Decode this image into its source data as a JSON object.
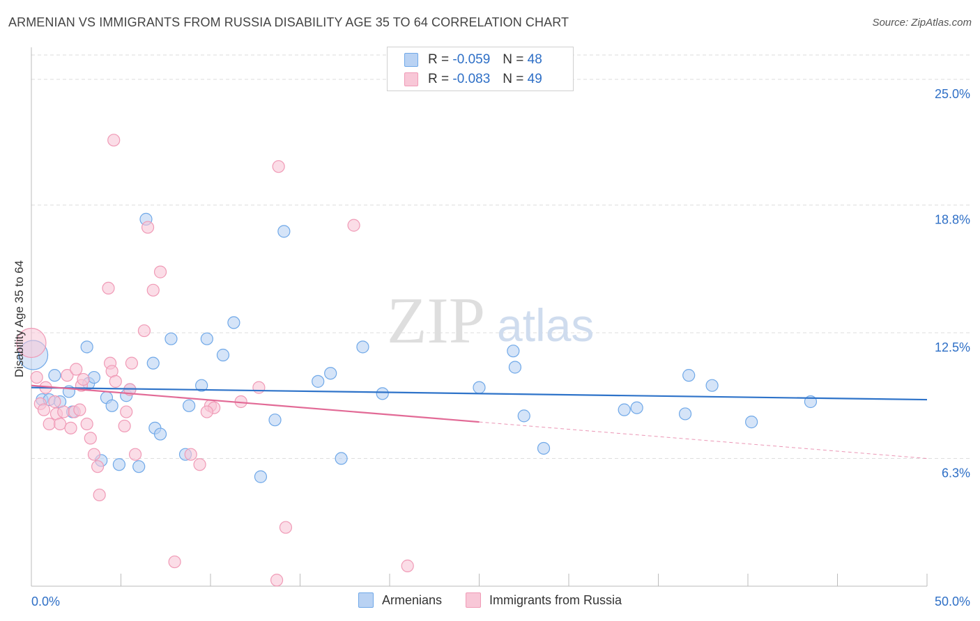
{
  "title": "ARMENIAN VS IMMIGRANTS FROM RUSSIA DISABILITY AGE 35 TO 64 CORRELATION CHART",
  "source": "Source: ZipAtlas.com",
  "watermark": {
    "zip": "ZIP",
    "atlas": "atlas"
  },
  "legend": {
    "r_label": "R =",
    "n_label": "N =",
    "rows": [
      {
        "r": "-0.059",
        "n": "48"
      },
      {
        "r": "-0.083",
        "n": "49"
      }
    ]
  },
  "chart_data": {
    "type": "scatter",
    "title": "ARMENIAN VS IMMIGRANTS FROM RUSSIA DISABILITY AGE 35 TO 64 CORRELATION CHART",
    "xlabel": "",
    "ylabel": "Disability Age 35 to 64",
    "xlim": [
      0,
      50
    ],
    "ylim": [
      0,
      26.2
    ],
    "x_tick_labels": [
      "0.0%",
      "50.0%"
    ],
    "y_ticks": [
      6.3,
      12.5,
      18.8,
      25.0
    ],
    "y_tick_labels": [
      "6.3%",
      "12.5%",
      "18.8%",
      "25.0%"
    ],
    "grid": true,
    "legend_position": "bottom-center",
    "series": [
      {
        "name": "Armenians",
        "color": "#6fa8e8",
        "fill": "#b9d2f3",
        "line_color": "#2e73c9",
        "trend": {
          "x0": 0,
          "y0": 9.8,
          "x1": 50,
          "y1": 9.2,
          "dashed_from": null
        },
        "points": [
          [
            0.1,
            11.4,
            "big"
          ],
          [
            0.6,
            9.2
          ],
          [
            1.3,
            10.4
          ],
          [
            1.0,
            9.2
          ],
          [
            2.1,
            9.6
          ],
          [
            1.6,
            9.1
          ],
          [
            2.3,
            8.6
          ],
          [
            3.2,
            10.0
          ],
          [
            3.5,
            10.3
          ],
          [
            3.1,
            11.8
          ],
          [
            4.2,
            9.3
          ],
          [
            4.5,
            8.9
          ],
          [
            3.9,
            6.2
          ],
          [
            4.9,
            6.0
          ],
          [
            5.3,
            9.4
          ],
          [
            5.5,
            9.7
          ],
          [
            6.0,
            5.9
          ],
          [
            6.4,
            18.1
          ],
          [
            6.8,
            11.0
          ],
          [
            6.9,
            7.8
          ],
          [
            7.2,
            7.5
          ],
          [
            7.8,
            12.2
          ],
          [
            8.6,
            6.5
          ],
          [
            8.8,
            8.9
          ],
          [
            9.5,
            9.9
          ],
          [
            9.8,
            12.2
          ],
          [
            10.7,
            11.4
          ],
          [
            11.3,
            13.0
          ],
          [
            12.8,
            5.4
          ],
          [
            13.6,
            8.2
          ],
          [
            14.1,
            17.5
          ],
          [
            16.0,
            10.1
          ],
          [
            16.7,
            10.5
          ],
          [
            17.3,
            6.3
          ],
          [
            18.5,
            11.8
          ],
          [
            19.6,
            9.5
          ],
          [
            25.0,
            9.8
          ],
          [
            26.9,
            11.6
          ],
          [
            27.0,
            10.8
          ],
          [
            27.5,
            8.4
          ],
          [
            28.6,
            6.8
          ],
          [
            33.1,
            8.7
          ],
          [
            33.8,
            8.8
          ],
          [
            36.5,
            8.5
          ],
          [
            36.7,
            10.4
          ],
          [
            38.0,
            9.9
          ],
          [
            40.2,
            8.1
          ],
          [
            43.5,
            9.1
          ]
        ]
      },
      {
        "name": "Immigrants from Russia",
        "color": "#f09ab6",
        "fill": "#f8c7d7",
        "line_color": "#e26a96",
        "trend": {
          "x0": 0,
          "y0": 9.9,
          "x1": 50,
          "y1": 6.3,
          "dashed_from": 25
        },
        "points": [
          [
            0.0,
            12.0,
            "big"
          ],
          [
            0.3,
            10.3
          ],
          [
            0.5,
            9.0
          ],
          [
            0.7,
            8.7
          ],
          [
            0.8,
            9.8
          ],
          [
            1.0,
            8.0
          ],
          [
            1.3,
            9.1
          ],
          [
            1.4,
            8.5
          ],
          [
            1.6,
            8.0
          ],
          [
            1.8,
            8.6
          ],
          [
            2.0,
            10.4
          ],
          [
            2.2,
            7.8
          ],
          [
            2.4,
            8.6
          ],
          [
            2.5,
            10.7
          ],
          [
            2.7,
            8.7
          ],
          [
            2.8,
            9.9
          ],
          [
            3.1,
            8.0
          ],
          [
            3.3,
            7.3
          ],
          [
            3.5,
            6.5
          ],
          [
            3.7,
            5.9
          ],
          [
            3.8,
            4.5
          ],
          [
            4.3,
            14.7
          ],
          [
            4.4,
            11.0
          ],
          [
            4.5,
            10.6
          ],
          [
            4.6,
            22.0
          ],
          [
            4.7,
            10.1
          ],
          [
            5.2,
            7.9
          ],
          [
            5.3,
            8.6
          ],
          [
            5.5,
            9.7
          ],
          [
            5.6,
            11.0
          ],
          [
            5.8,
            6.5
          ],
          [
            6.3,
            12.6
          ],
          [
            6.5,
            17.7
          ],
          [
            6.8,
            14.6
          ],
          [
            7.2,
            15.5
          ],
          [
            8.0,
            1.2
          ],
          [
            8.9,
            6.5
          ],
          [
            9.4,
            6.0
          ],
          [
            10.0,
            8.9
          ],
          [
            10.2,
            8.8
          ],
          [
            11.7,
            9.1
          ],
          [
            12.7,
            9.8
          ],
          [
            13.7,
            0.3
          ],
          [
            13.8,
            20.7
          ],
          [
            14.2,
            2.9
          ],
          [
            18.0,
            17.8
          ],
          [
            21.0,
            1.0
          ],
          [
            9.8,
            8.6
          ],
          [
            2.9,
            10.2
          ]
        ]
      }
    ]
  }
}
